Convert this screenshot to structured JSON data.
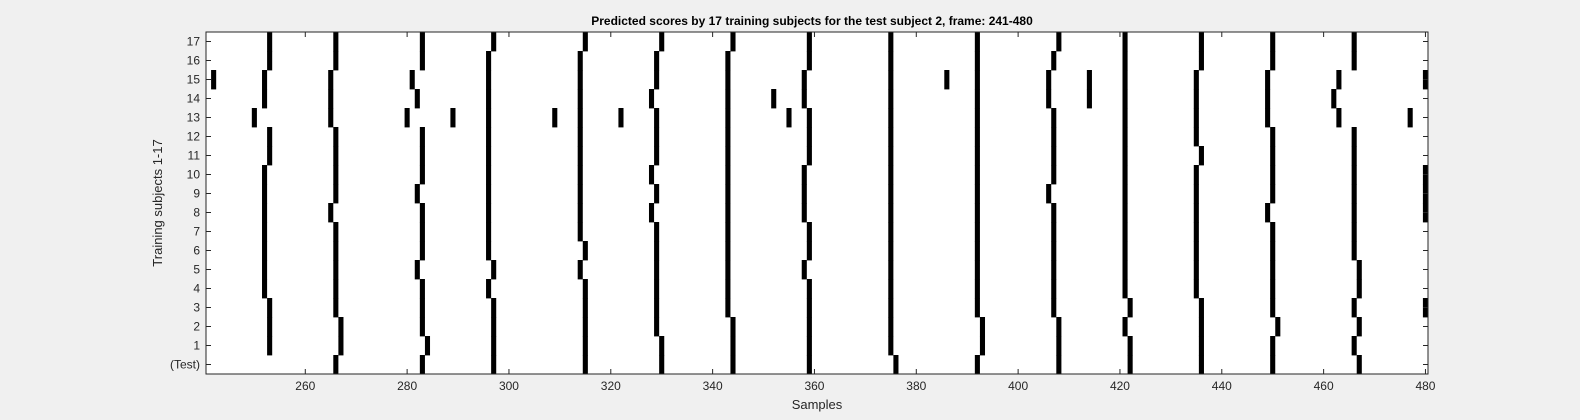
{
  "chart_data": {
    "type": "heatmap",
    "title": "Predicted scores by 17 training subjects for the test subject 2, frame: 241-480",
    "xlabel": "Samples",
    "ylabel": "Training subjects 1-17",
    "xlim": [
      241,
      480
    ],
    "x_ticks": [
      260,
      280,
      300,
      320,
      340,
      360,
      380,
      400,
      420,
      440,
      460,
      480
    ],
    "y_ticks": [
      "(Test)",
      "1",
      "2",
      "3",
      "4",
      "5",
      "6",
      "7",
      "8",
      "9",
      "10",
      "11",
      "12",
      "13",
      "14",
      "15",
      "16",
      "17"
    ],
    "colors": {
      "mark": "#000000",
      "background": "#ffffff",
      "figure": "#f0f0f0",
      "axis": "#262626"
    },
    "grid": false,
    "rows": [
      {
        "label": "(Test)",
        "samples": [
          266,
          283,
          297,
          315,
          330,
          344,
          359,
          376,
          392,
          408,
          422,
          436,
          450,
          467
        ]
      },
      {
        "label": "1",
        "samples": [
          253,
          267,
          284,
          297,
          315,
          330,
          344,
          359,
          375,
          393,
          408,
          422,
          436,
          450,
          466
        ]
      },
      {
        "label": "2",
        "samples": [
          253,
          267,
          283,
          297,
          315,
          329,
          344,
          359,
          375,
          393,
          408,
          421,
          436,
          451,
          467
        ]
      },
      {
        "label": "3",
        "samples": [
          253,
          266,
          283,
          297,
          315,
          329,
          343,
          359,
          375,
          392,
          407,
          422,
          436,
          450,
          466,
          480
        ]
      },
      {
        "label": "4",
        "samples": [
          252,
          266,
          283,
          296,
          315,
          329,
          343,
          359,
          375,
          392,
          407,
          421,
          435,
          450,
          467
        ]
      },
      {
        "label": "5",
        "samples": [
          252,
          266,
          282,
          297,
          314,
          329,
          343,
          358,
          375,
          392,
          407,
          421,
          435,
          450,
          467
        ]
      },
      {
        "label": "6",
        "samples": [
          252,
          266,
          283,
          296,
          315,
          329,
          343,
          359,
          375,
          392,
          407,
          421,
          435,
          450,
          466
        ]
      },
      {
        "label": "7",
        "samples": [
          252,
          266,
          283,
          296,
          314,
          329,
          343,
          359,
          375,
          392,
          407,
          421,
          435,
          450,
          466
        ]
      },
      {
        "label": "8",
        "samples": [
          252,
          265,
          283,
          296,
          314,
          328,
          343,
          358,
          375,
          392,
          407,
          421,
          435,
          449,
          466,
          480
        ]
      },
      {
        "label": "9",
        "samples": [
          252,
          266,
          282,
          296,
          314,
          329,
          343,
          358,
          375,
          392,
          406,
          421,
          435,
          450,
          466,
          480
        ]
      },
      {
        "label": "10",
        "samples": [
          252,
          266,
          283,
          296,
          314,
          328,
          343,
          358,
          375,
          392,
          407,
          421,
          435,
          450,
          466,
          480
        ]
      },
      {
        "label": "11",
        "samples": [
          253,
          266,
          283,
          296,
          314,
          329,
          343,
          359,
          375,
          392,
          407,
          421,
          436,
          450,
          466
        ]
      },
      {
        "label": "12",
        "samples": [
          253,
          266,
          283,
          296,
          314,
          329,
          343,
          359,
          375,
          392,
          407,
          421,
          435,
          450,
          466
        ]
      },
      {
        "label": "13",
        "samples": [
          250,
          265,
          280,
          289,
          296,
          309,
          314,
          322,
          329,
          343,
          355,
          359,
          375,
          392,
          407,
          421,
          435,
          449,
          463,
          477
        ]
      },
      {
        "label": "14",
        "samples": [
          252,
          265,
          282,
          296,
          314,
          328,
          343,
          352,
          358,
          375,
          392,
          406,
          414,
          421,
          435,
          449,
          462
        ]
      },
      {
        "label": "15",
        "samples": [
          242,
          252,
          265,
          281,
          296,
          314,
          329,
          343,
          358,
          375,
          386,
          392,
          406,
          414,
          421,
          435,
          449,
          463,
          480
        ]
      },
      {
        "label": "16",
        "samples": [
          253,
          266,
          283,
          296,
          314,
          329,
          343,
          359,
          375,
          392,
          407,
          421,
          436,
          450,
          466
        ]
      },
      {
        "label": "17",
        "samples": [
          253,
          266,
          283,
          297,
          315,
          330,
          344,
          359,
          375,
          392,
          408,
          421,
          436,
          450,
          466
        ]
      }
    ]
  }
}
